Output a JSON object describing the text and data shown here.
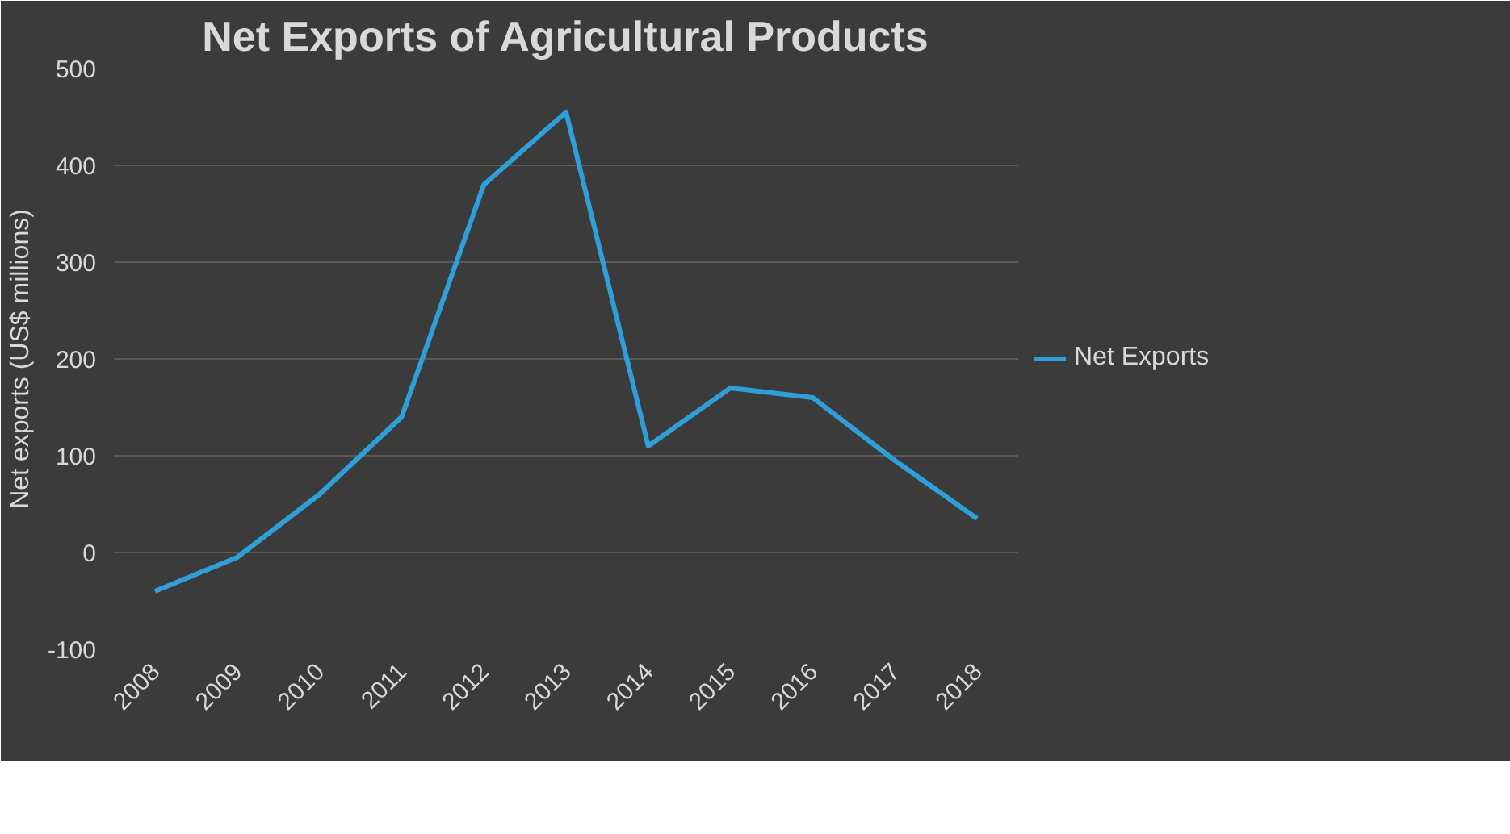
{
  "chart_data": {
    "type": "line",
    "title": "Net Exports of Agricultural Products",
    "ylabel": "Net exports (US$ millions)",
    "categories": [
      "2008",
      "2009",
      "2010",
      "2011",
      "2012",
      "2013",
      "2014",
      "2015",
      "2016",
      "2017",
      "2018"
    ],
    "series": [
      {
        "name": "Net Exports",
        "color": "#2e9fd9",
        "values": [
          -40,
          -5,
          60,
          140,
          380,
          455,
          110,
          170,
          160,
          95,
          35
        ]
      }
    ],
    "ylim": [
      -100,
      500
    ],
    "yticks": [
      -100,
      0,
      100,
      200,
      300,
      400,
      500
    ],
    "grid": "y",
    "legend": "right",
    "marker": "none",
    "line_style": "solid"
  }
}
